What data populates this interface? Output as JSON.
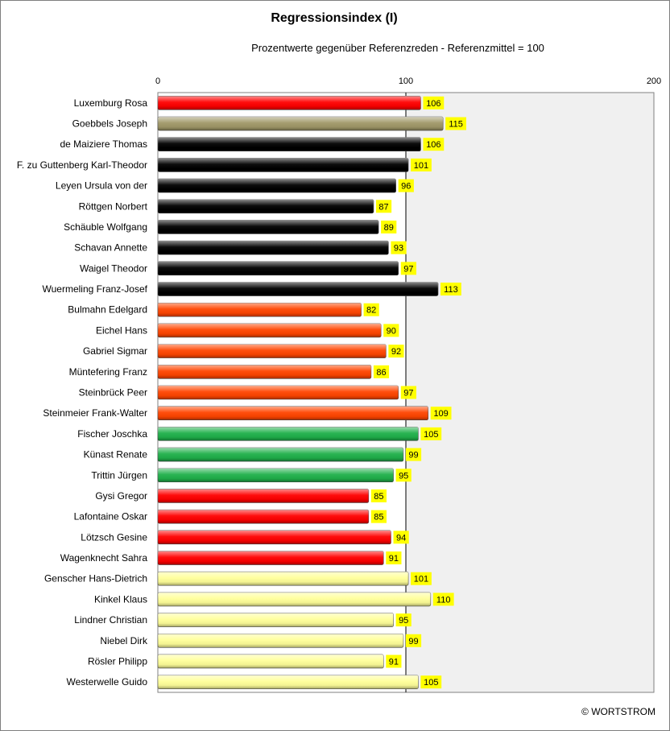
{
  "chart_data": {
    "type": "bar",
    "orientation": "horizontal",
    "title": "Regressionsindex (I)",
    "subtitle": "Prozentwerte  gegenüber Referenzreden - Referenzmittel = 100",
    "xlim": [
      0,
      200
    ],
    "xticks": [
      "0",
      "100",
      "200"
    ],
    "reference_line": 100,
    "grid": false,
    "credit": "© WORTSTROM",
    "categories": [
      "Luxemburg Rosa",
      "Goebbels Joseph",
      "de Maiziere Thomas",
      "F. zu Guttenberg Karl-Theodor",
      "Leyen Ursula von der",
      "Röttgen Norbert",
      "Schäuble Wolfgang",
      "Schavan Annette",
      "Waigel Theodor",
      "Wuermeling Franz-Josef",
      "Bulmahn Edelgard",
      "Eichel Hans",
      "Gabriel Sigmar",
      "Müntefering Franz",
      "Steinbrück Peer",
      "Steinmeier Frank-Walter",
      "Fischer Joschka",
      "Künast Renate",
      "Trittin Jürgen",
      "Gysi Gregor",
      "Lafontaine Oskar",
      "Lötzsch Gesine",
      "Wagenknecht Sahra",
      "Genscher Hans-Dietrich",
      "Kinkel Klaus",
      "Lindner Christian",
      "Niebel Dirk",
      "Rösler Philipp",
      "Westerwelle Guido"
    ],
    "values": [
      106,
      115,
      106,
      101,
      96,
      87,
      89,
      93,
      97,
      113,
      82,
      90,
      92,
      86,
      97,
      109,
      105,
      99,
      95,
      85,
      85,
      94,
      91,
      101,
      110,
      95,
      99,
      91,
      105
    ],
    "bar_colors": [
      "#ff0000",
      "#a09868",
      "#000000",
      "#000000",
      "#000000",
      "#000000",
      "#000000",
      "#000000",
      "#000000",
      "#000000",
      "#ff4500",
      "#ff4500",
      "#ff4500",
      "#ff4500",
      "#ff4500",
      "#ff4500",
      "#1fb04a",
      "#1fb04a",
      "#1fb04a",
      "#ff0000",
      "#ff0000",
      "#ff0000",
      "#ff0000",
      "#ffff99",
      "#ffff99",
      "#ffff99",
      "#ffff99",
      "#ffff99",
      "#ffff99"
    ],
    "label_background": "#ffff00",
    "plot_background_right": "#f0f0f0"
  }
}
